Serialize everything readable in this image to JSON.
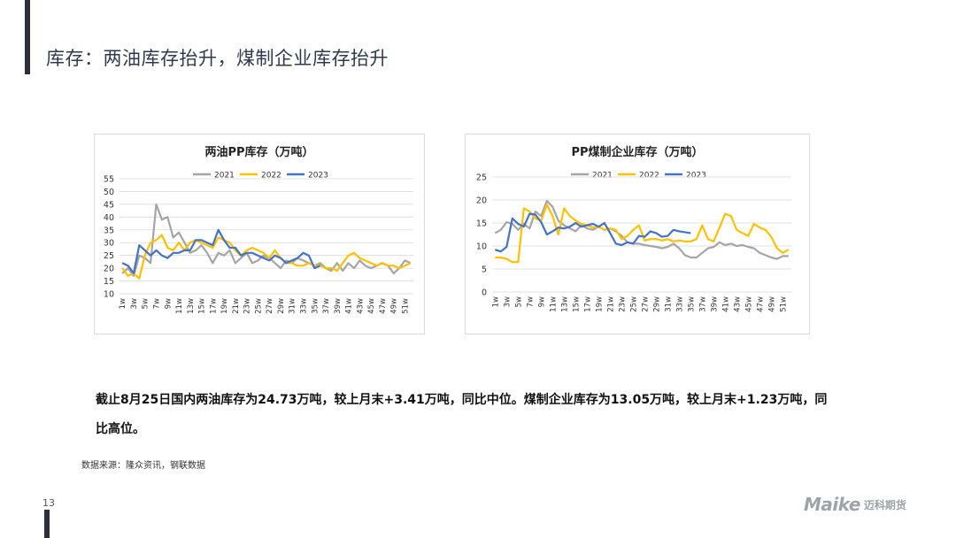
{
  "page": {
    "title": "库存：两油库存抬升，煤制企业库存抬升",
    "summary": "截止8月25日国内两油库存为24.73万吨，较上月末+3.41万吨，同比中位。煤制企业库存为13.05万吨，较上月末+1.23万吨，同比高位。",
    "source": "数据来源：隆众资讯，钢联数据",
    "page_number": "13",
    "logo_text": "Maike",
    "logo_cn": "迈科期货"
  },
  "colors": {
    "2021": "#a5a5a5",
    "2022": "#ffc000",
    "2023": "#4472c4"
  },
  "chart_data": [
    {
      "type": "line",
      "title": "两油PP库存（万吨）",
      "x_ticks": [
        "1w",
        "3w",
        "5w",
        "7w",
        "9w",
        "11w",
        "13w",
        "15w",
        "17w",
        "19w",
        "21w",
        "23w",
        "25w",
        "27w",
        "29w",
        "31w",
        "33w",
        "35w",
        "37w",
        "39w",
        "41w",
        "43w",
        "45w",
        "47w",
        "49w",
        "51w"
      ],
      "ylim": [
        10,
        55
      ],
      "y_ticks": [
        10,
        15,
        20,
        25,
        30,
        35,
        40,
        45,
        50,
        55
      ],
      "grid": true,
      "legend": "top",
      "series": [
        {
          "name": "2021",
          "values": [
            18,
            20,
            17,
            25,
            24,
            22,
            45,
            39,
            40,
            32,
            34,
            30,
            26,
            27,
            29,
            26,
            22,
            26,
            25,
            27,
            22,
            24,
            26,
            22,
            23,
            25,
            24,
            22,
            20,
            23,
            22,
            24,
            23,
            22,
            21,
            22,
            20,
            19,
            22,
            19,
            22,
            20,
            23,
            21,
            20,
            21,
            22,
            21,
            18,
            20,
            23,
            22
          ]
        },
        {
          "name": "2022",
          "values": [
            20,
            17,
            18,
            16,
            25,
            30,
            31,
            33,
            28,
            27,
            30,
            27,
            30,
            31,
            30,
            29,
            28,
            32,
            31,
            30,
            27,
            25,
            27,
            28,
            27,
            26,
            24,
            27,
            24,
            22,
            22,
            21,
            21,
            22,
            21,
            21,
            20,
            20,
            19,
            22,
            25,
            26,
            24,
            23,
            22,
            21,
            22,
            21,
            21,
            20,
            21,
            22
          ]
        },
        {
          "name": "2023",
          "values": [
            22,
            21,
            18,
            29,
            27,
            25,
            27,
            25,
            24,
            26,
            26,
            27,
            27,
            31,
            31,
            30,
            29,
            35,
            31,
            28,
            28,
            25,
            26,
            26,
            25,
            24,
            23,
            25,
            24,
            22,
            23,
            24,
            26,
            25,
            20,
            21
          ]
        }
      ]
    },
    {
      "type": "line",
      "title": "PP煤制企业库存（万吨）",
      "x_ticks": [
        "1w",
        "3w",
        "5w",
        "7w",
        "9w",
        "11w",
        "13w",
        "15w",
        "17w",
        "19w",
        "21w",
        "23w",
        "25w",
        "27w",
        "29w",
        "31w",
        "33w",
        "35w",
        "37w",
        "39w",
        "41w",
        "43w",
        "45w",
        "47w",
        "49w",
        "51w"
      ],
      "ylim": [
        0,
        25
      ],
      "y_ticks": [
        0,
        5,
        10,
        15,
        20,
        25
      ],
      "grid": true,
      "legend": "top",
      "series": [
        {
          "name": "2021",
          "values": [
            12.8,
            13.5,
            15.2,
            14.8,
            13.5,
            14.8,
            13.8,
            17.5,
            16.5,
            19.8,
            18.5,
            15.5,
            14.5,
            13.8,
            13.2,
            14.5,
            13.8,
            13.5,
            14.2,
            13.5,
            13.8,
            13.2,
            12.2,
            10.8,
            10.5,
            10.5,
            10.2,
            10.0,
            9.8,
            9.5,
            9.8,
            10.5,
            9.5,
            8.0,
            7.5,
            7.5,
            8.5,
            9.5,
            9.8,
            10.8,
            10.2,
            10.5,
            10.0,
            10.2,
            9.8,
            9.5,
            8.5,
            8.0,
            7.5,
            7.2,
            7.8,
            7.8
          ]
        },
        {
          "name": "2022",
          "values": [
            7.5,
            7.5,
            7.2,
            6.5,
            6.5,
            18.2,
            17.5,
            16.0,
            15.5,
            19.0,
            16.5,
            12.5,
            18.2,
            16.5,
            15.5,
            14.8,
            14.5,
            14.0,
            14.2,
            13.5,
            13.8,
            13.5,
            11.5,
            12.2,
            13.5,
            14.5,
            11.2,
            11.5,
            11.5,
            11.2,
            11.5,
            11.0,
            11.2,
            11.0,
            11.0,
            11.5,
            14.5,
            11.5,
            11.0,
            14.0,
            17.0,
            16.5,
            13.5,
            12.8,
            12.2,
            14.8,
            14.0,
            13.5,
            12.0,
            9.5,
            8.5,
            9.2
          ]
        },
        {
          "name": "2023",
          "values": [
            9.2,
            8.8,
            9.8,
            16.0,
            14.8,
            14.2,
            17.0,
            16.8,
            15.2,
            12.5,
            13.2,
            14.0,
            13.8,
            14.2,
            15.0,
            14.2,
            14.5,
            14.8,
            14.2,
            15.0,
            12.8,
            10.5,
            10.2,
            10.8,
            10.5,
            12.2,
            12.0,
            13.2,
            12.8,
            12.0,
            12.2,
            13.5,
            13.2,
            13.0,
            12.8
          ]
        }
      ]
    }
  ]
}
